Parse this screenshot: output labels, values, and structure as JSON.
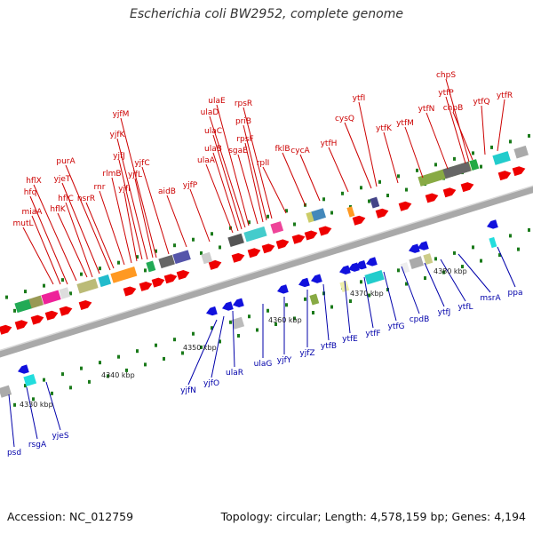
{
  "title": "Escherichia coli BW2952, complete genome",
  "accession": "Accession: NC_012759",
  "summary": "Topology: circular; Length: 4,578,159 bp; Genes: 4,194",
  "colors": {
    "forward": "#ee0000",
    "reverse": "#1111dd",
    "forward_label": "#cc0000",
    "reverse_label": "#0000aa",
    "backbone": "#999999",
    "tick": "#1a7a1a"
  },
  "kbp_labels": [
    "4330 kbp",
    "4340 kbp",
    "4350 kbp",
    "4360 kbp",
    "4370 kbp",
    "4380 kbp"
  ],
  "forward_genes": [
    "mutL",
    "miaA",
    "hfq",
    "hflX",
    "hflK",
    "hflC",
    "yjeT",
    "purA",
    "nsrR",
    "rnr",
    "rlmB",
    "yjfI",
    "yjfJ",
    "yjfK",
    "yjfL",
    "yjfM",
    "yjfC",
    "aidB",
    "yjfP",
    "ulaA",
    "ulaB",
    "ulaC",
    "ulaD",
    "ulaE",
    "sgaE",
    "rpsF",
    "priB",
    "rpsR",
    "rplI",
    "fklB",
    "cycA",
    "ytfH",
    "cysQ",
    "ytfI",
    "ytfK",
    "ytfM",
    "ytfN",
    "ytfP",
    "chpS",
    "chpB",
    "ytfQ",
    "ytfR"
  ],
  "reverse_genes": [
    "psd",
    "rsgA",
    "yjeS",
    "yjfN",
    "yjfO",
    "ulaR",
    "ulaG",
    "yjfY",
    "yjfZ",
    "ytfB",
    "ytfE",
    "ytfF",
    "ytfG",
    "cpdB",
    "ytfJ",
    "ytfL",
    "msrA",
    "ppa"
  ]
}
